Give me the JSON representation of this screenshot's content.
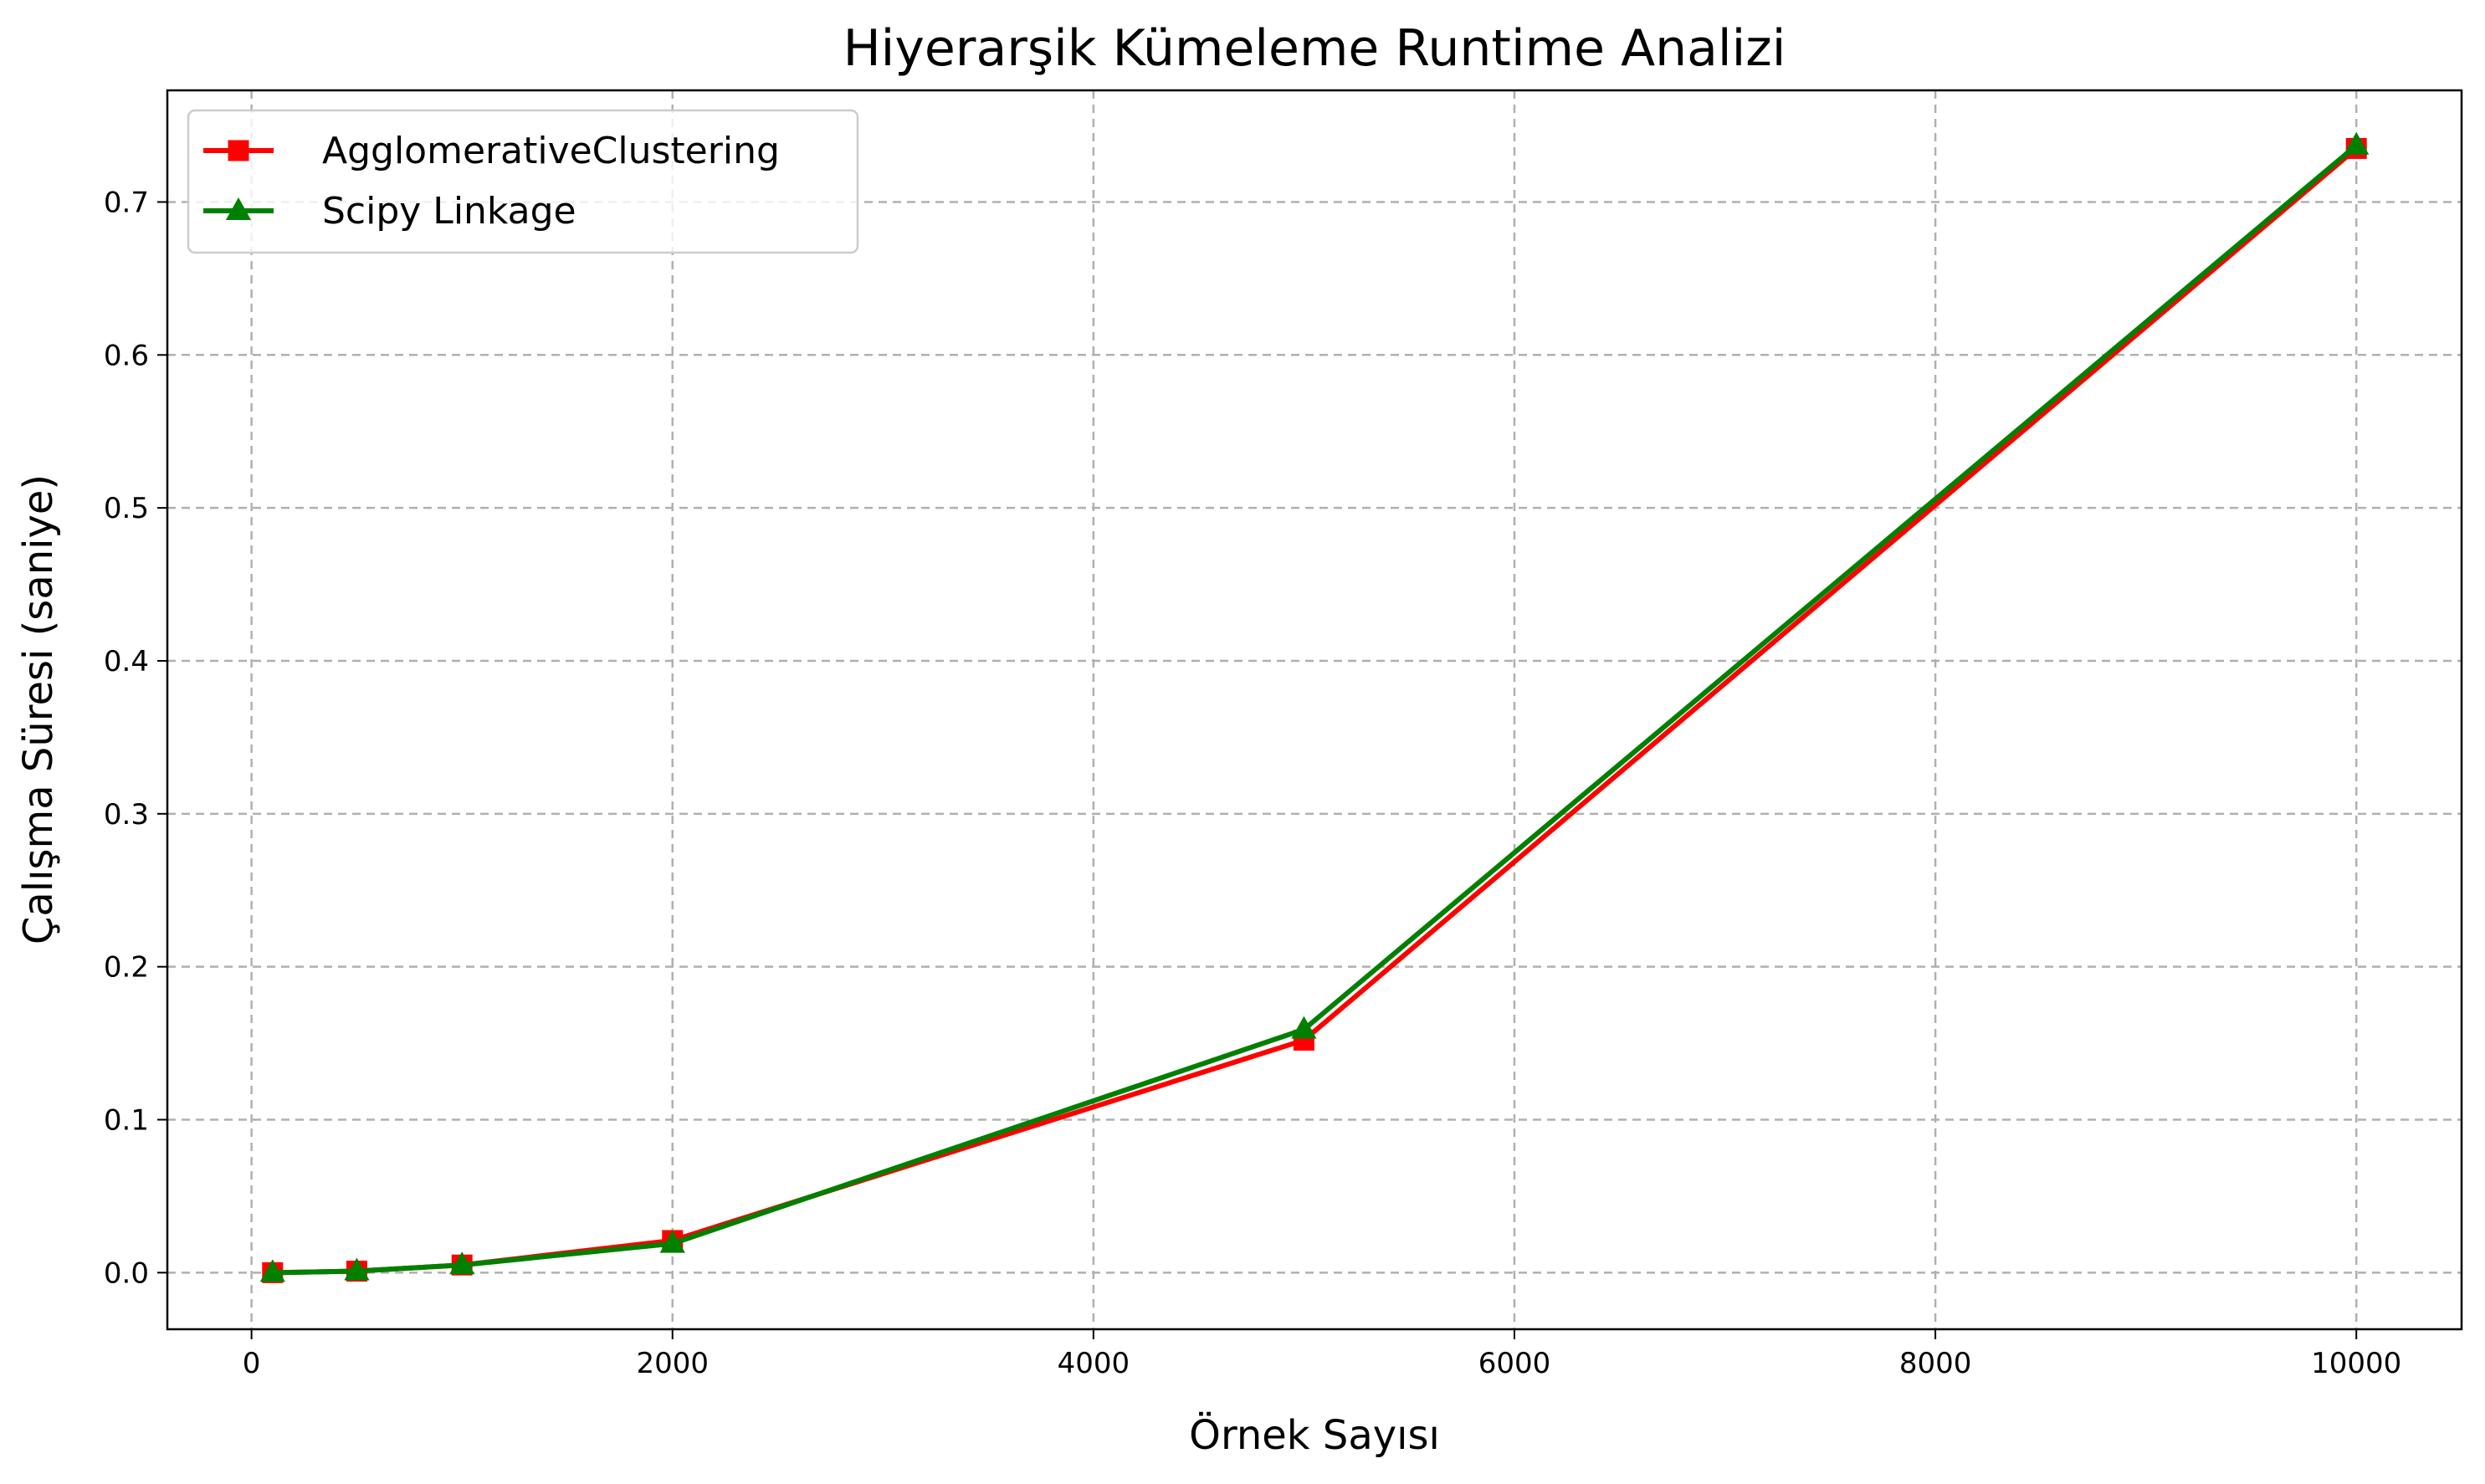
{
  "chart_data": {
    "type": "line",
    "title": "Hiyerarşik Kümeleme Runtime Analizi",
    "xlabel": "Örnek Sayısı",
    "ylabel": "Çalışma Süresi (saniye)",
    "xlim": [
      -400,
      10500
    ],
    "ylim": [
      -0.037,
      0.773
    ],
    "xticks": [
      0,
      2000,
      4000,
      6000,
      8000,
      10000
    ],
    "xtick_labels": [
      "0",
      "2000",
      "4000",
      "6000",
      "8000",
      "10000"
    ],
    "yticks": [
      0.0,
      0.1,
      0.2,
      0.3,
      0.4,
      0.5,
      0.6,
      0.7
    ],
    "ytick_labels": [
      "0.0",
      "0.1",
      "0.2",
      "0.3",
      "0.4",
      "0.5",
      "0.6",
      "0.7"
    ],
    "grid": true,
    "legend_position": "top-left",
    "x": [
      100,
      500,
      1000,
      2000,
      5000,
      10000
    ],
    "series": [
      {
        "name": "AgglomerativeClustering",
        "values": [
          0.0,
          0.001,
          0.005,
          0.021,
          0.152,
          0.735
        ],
        "color": "#ff0000",
        "marker": "square"
      },
      {
        "name": "Scipy Linkage",
        "values": [
          0.0,
          0.001,
          0.005,
          0.019,
          0.159,
          0.737
        ],
        "color": "#008000",
        "marker": "triangle"
      }
    ]
  }
}
